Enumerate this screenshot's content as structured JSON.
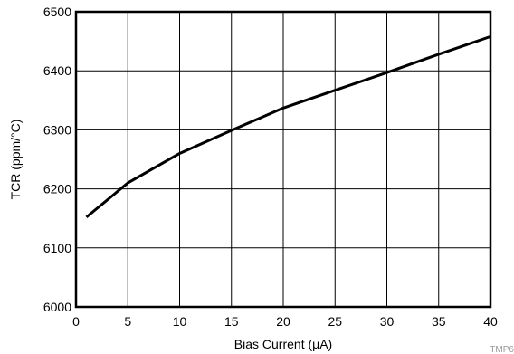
{
  "chart_data": {
    "type": "line",
    "title": "",
    "xlabel": "Bias Current (μA)",
    "ylabel": "TCR (ppm/°C)",
    "xlim": [
      0,
      40
    ],
    "ylim": [
      6000,
      6500
    ],
    "x_ticks": [
      0,
      5,
      10,
      15,
      20,
      25,
      30,
      35,
      40
    ],
    "y_ticks": [
      6000,
      6100,
      6200,
      6300,
      6400,
      6500
    ],
    "x_tick_labels": [
      "0",
      "5",
      "10",
      "15",
      "20",
      "25",
      "30",
      "35",
      "40"
    ],
    "y_tick_labels": [
      "6000",
      "6100",
      "6200",
      "6300",
      "6400",
      "6500"
    ],
    "grid": true,
    "series": [
      {
        "x": [
          1,
          5,
          10,
          15,
          20,
          25,
          30,
          35,
          40
        ],
        "y": [
          6152,
          6210,
          6260,
          6299,
          6337,
          6367,
          6397,
          6428,
          6458
        ]
      }
    ],
    "line_color": "#000000"
  },
  "watermark": "TMP6"
}
